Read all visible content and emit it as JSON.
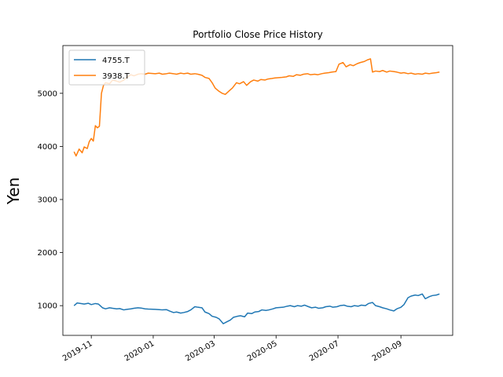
{
  "chart_data": {
    "type": "line",
    "title": "Portfolio Close Price History",
    "xlabel": "",
    "ylabel": "Yen",
    "legend_position": "top-left",
    "grid": false,
    "x_axis": {
      "type": "date",
      "range": [
        "2019-10-04",
        "2020-10-22"
      ],
      "ticks": [
        "2019-11",
        "2020-01",
        "2020-03",
        "2020-05",
        "2020-07",
        "2020-09"
      ],
      "tick_dates": [
        "2019-11-01",
        "2020-01-01",
        "2020-03-01",
        "2020-05-01",
        "2020-07-01",
        "2020-09-01"
      ]
    },
    "y_axis": {
      "range": [
        440,
        5900
      ],
      "ticks": [
        1000,
        2000,
        3000,
        4000,
        5000
      ]
    },
    "series": [
      {
        "name": "4755.T",
        "color": "#1f77b4",
        "points": [
          [
            "2019-10-15",
            1000
          ],
          [
            "2019-10-18",
            1050
          ],
          [
            "2019-10-22",
            1040
          ],
          [
            "2019-10-25",
            1030
          ],
          [
            "2019-10-29",
            1045
          ],
          [
            "2019-11-01",
            1020
          ],
          [
            "2019-11-05",
            1040
          ],
          [
            "2019-11-08",
            1030
          ],
          [
            "2019-11-12",
            960
          ],
          [
            "2019-11-15",
            940
          ],
          [
            "2019-11-19",
            960
          ],
          [
            "2019-11-22",
            950
          ],
          [
            "2019-11-26",
            940
          ],
          [
            "2019-11-29",
            945
          ],
          [
            "2019-12-03",
            920
          ],
          [
            "2019-12-06",
            930
          ],
          [
            "2019-12-10",
            940
          ],
          [
            "2019-12-13",
            950
          ],
          [
            "2019-12-17",
            960
          ],
          [
            "2019-12-20",
            955
          ],
          [
            "2019-12-24",
            940
          ],
          [
            "2019-12-27",
            935
          ],
          [
            "2020-01-03",
            930
          ],
          [
            "2020-01-07",
            925
          ],
          [
            "2020-01-10",
            920
          ],
          [
            "2020-01-14",
            925
          ],
          [
            "2020-01-17",
            900
          ],
          [
            "2020-01-21",
            870
          ],
          [
            "2020-01-24",
            880
          ],
          [
            "2020-01-28",
            860
          ],
          [
            "2020-01-31",
            870
          ],
          [
            "2020-02-04",
            890
          ],
          [
            "2020-02-07",
            920
          ],
          [
            "2020-02-11",
            980
          ],
          [
            "2020-02-14",
            970
          ],
          [
            "2020-02-18",
            960
          ],
          [
            "2020-02-21",
            880
          ],
          [
            "2020-02-25",
            850
          ],
          [
            "2020-02-28",
            800
          ],
          [
            "2020-03-03",
            780
          ],
          [
            "2020-03-06",
            750
          ],
          [
            "2020-03-10",
            660
          ],
          [
            "2020-03-13",
            690
          ],
          [
            "2020-03-17",
            730
          ],
          [
            "2020-03-20",
            780
          ],
          [
            "2020-03-24",
            800
          ],
          [
            "2020-03-27",
            810
          ],
          [
            "2020-03-31",
            790
          ],
          [
            "2020-04-03",
            860
          ],
          [
            "2020-04-07",
            850
          ],
          [
            "2020-04-10",
            880
          ],
          [
            "2020-04-14",
            890
          ],
          [
            "2020-04-17",
            920
          ],
          [
            "2020-04-21",
            910
          ],
          [
            "2020-04-24",
            920
          ],
          [
            "2020-04-28",
            940
          ],
          [
            "2020-05-01",
            960
          ],
          [
            "2020-05-08",
            970
          ],
          [
            "2020-05-12",
            990
          ],
          [
            "2020-05-15",
            1000
          ],
          [
            "2020-05-19",
            980
          ],
          [
            "2020-05-22",
            1000
          ],
          [
            "2020-05-26",
            990
          ],
          [
            "2020-05-29",
            1010
          ],
          [
            "2020-06-02",
            980
          ],
          [
            "2020-06-05",
            960
          ],
          [
            "2020-06-09",
            970
          ],
          [
            "2020-06-12",
            950
          ],
          [
            "2020-06-16",
            960
          ],
          [
            "2020-06-19",
            980
          ],
          [
            "2020-06-23",
            990
          ],
          [
            "2020-06-26",
            970
          ],
          [
            "2020-06-30",
            980
          ],
          [
            "2020-07-03",
            1000
          ],
          [
            "2020-07-07",
            1010
          ],
          [
            "2020-07-10",
            990
          ],
          [
            "2020-07-14",
            980
          ],
          [
            "2020-07-17",
            1000
          ],
          [
            "2020-07-21",
            990
          ],
          [
            "2020-07-24",
            1010
          ],
          [
            "2020-07-28",
            1000
          ],
          [
            "2020-07-31",
            1040
          ],
          [
            "2020-08-04",
            1060
          ],
          [
            "2020-08-07",
            1000
          ],
          [
            "2020-08-11",
            980
          ],
          [
            "2020-08-14",
            960
          ],
          [
            "2020-08-18",
            940
          ],
          [
            "2020-08-21",
            920
          ],
          [
            "2020-08-25",
            900
          ],
          [
            "2020-08-28",
            940
          ],
          [
            "2020-09-01",
            970
          ],
          [
            "2020-09-04",
            1020
          ],
          [
            "2020-09-08",
            1150
          ],
          [
            "2020-09-11",
            1180
          ],
          [
            "2020-09-15",
            1200
          ],
          [
            "2020-09-18",
            1190
          ],
          [
            "2020-09-22",
            1220
          ],
          [
            "2020-09-25",
            1130
          ],
          [
            "2020-09-29",
            1170
          ],
          [
            "2020-10-02",
            1190
          ],
          [
            "2020-10-06",
            1200
          ],
          [
            "2020-10-09",
            1220
          ]
        ]
      },
      {
        "name": "3938.T",
        "color": "#ff7f0e",
        "points": [
          [
            "2019-10-15",
            3900
          ],
          [
            "2019-10-17",
            3820
          ],
          [
            "2019-10-20",
            3950
          ],
          [
            "2019-10-23",
            3880
          ],
          [
            "2019-10-25",
            3990
          ],
          [
            "2019-10-28",
            3960
          ],
          [
            "2019-10-30",
            4090
          ],
          [
            "2019-11-01",
            4150
          ],
          [
            "2019-11-03",
            4100
          ],
          [
            "2019-11-05",
            4390
          ],
          [
            "2019-11-07",
            4350
          ],
          [
            "2019-11-09",
            4380
          ],
          [
            "2019-11-11",
            5000
          ],
          [
            "2019-11-13",
            5150
          ],
          [
            "2019-11-15",
            5200
          ],
          [
            "2019-11-19",
            5180
          ],
          [
            "2019-11-22",
            5250
          ],
          [
            "2019-11-26",
            5230
          ],
          [
            "2019-11-29",
            5210
          ],
          [
            "2019-12-03",
            5250
          ],
          [
            "2019-12-06",
            5300
          ],
          [
            "2019-12-10",
            5350
          ],
          [
            "2019-12-13",
            5330
          ],
          [
            "2019-12-17",
            5360
          ],
          [
            "2019-12-20",
            5370
          ],
          [
            "2019-12-24",
            5360
          ],
          [
            "2019-12-27",
            5380
          ],
          [
            "2020-01-03",
            5370
          ],
          [
            "2020-01-07",
            5380
          ],
          [
            "2020-01-10",
            5360
          ],
          [
            "2020-01-14",
            5370
          ],
          [
            "2020-01-17",
            5380
          ],
          [
            "2020-01-21",
            5370
          ],
          [
            "2020-01-24",
            5360
          ],
          [
            "2020-01-28",
            5380
          ],
          [
            "2020-01-31",
            5370
          ],
          [
            "2020-02-04",
            5380
          ],
          [
            "2020-02-07",
            5360
          ],
          [
            "2020-02-11",
            5370
          ],
          [
            "2020-02-14",
            5360
          ],
          [
            "2020-02-18",
            5340
          ],
          [
            "2020-02-21",
            5300
          ],
          [
            "2020-02-25",
            5280
          ],
          [
            "2020-02-28",
            5200
          ],
          [
            "2020-03-02",
            5100
          ],
          [
            "2020-03-05",
            5050
          ],
          [
            "2020-03-09",
            5000
          ],
          [
            "2020-03-12",
            4980
          ],
          [
            "2020-03-16",
            5050
          ],
          [
            "2020-03-19",
            5100
          ],
          [
            "2020-03-23",
            5200
          ],
          [
            "2020-03-26",
            5180
          ],
          [
            "2020-03-30",
            5220
          ],
          [
            "2020-04-02",
            5150
          ],
          [
            "2020-04-06",
            5220
          ],
          [
            "2020-04-09",
            5250
          ],
          [
            "2020-04-13",
            5230
          ],
          [
            "2020-04-16",
            5260
          ],
          [
            "2020-04-20",
            5250
          ],
          [
            "2020-04-23",
            5270
          ],
          [
            "2020-04-27",
            5280
          ],
          [
            "2020-04-30",
            5290
          ],
          [
            "2020-05-07",
            5300
          ],
          [
            "2020-05-11",
            5310
          ],
          [
            "2020-05-14",
            5330
          ],
          [
            "2020-05-18",
            5320
          ],
          [
            "2020-05-21",
            5350
          ],
          [
            "2020-05-25",
            5340
          ],
          [
            "2020-05-28",
            5360
          ],
          [
            "2020-06-01",
            5370
          ],
          [
            "2020-06-04",
            5350
          ],
          [
            "2020-06-08",
            5360
          ],
          [
            "2020-06-11",
            5350
          ],
          [
            "2020-06-15",
            5370
          ],
          [
            "2020-06-18",
            5380
          ],
          [
            "2020-06-22",
            5390
          ],
          [
            "2020-06-25",
            5400
          ],
          [
            "2020-06-29",
            5410
          ],
          [
            "2020-07-02",
            5550
          ],
          [
            "2020-07-06",
            5580
          ],
          [
            "2020-07-09",
            5500
          ],
          [
            "2020-07-13",
            5540
          ],
          [
            "2020-07-16",
            5520
          ],
          [
            "2020-07-20",
            5560
          ],
          [
            "2020-07-23",
            5580
          ],
          [
            "2020-07-27",
            5600
          ],
          [
            "2020-07-30",
            5630
          ],
          [
            "2020-08-02",
            5650
          ],
          [
            "2020-08-04",
            5400
          ],
          [
            "2020-08-07",
            5420
          ],
          [
            "2020-08-11",
            5410
          ],
          [
            "2020-08-14",
            5430
          ],
          [
            "2020-08-18",
            5400
          ],
          [
            "2020-08-21",
            5420
          ],
          [
            "2020-08-25",
            5410
          ],
          [
            "2020-08-28",
            5400
          ],
          [
            "2020-09-01",
            5380
          ],
          [
            "2020-09-04",
            5390
          ],
          [
            "2020-09-08",
            5370
          ],
          [
            "2020-09-11",
            5380
          ],
          [
            "2020-09-15",
            5360
          ],
          [
            "2020-09-18",
            5370
          ],
          [
            "2020-09-22",
            5360
          ],
          [
            "2020-09-25",
            5380
          ],
          [
            "2020-09-29",
            5370
          ],
          [
            "2020-10-02",
            5380
          ],
          [
            "2020-10-06",
            5390
          ],
          [
            "2020-10-09",
            5400
          ]
        ]
      }
    ]
  }
}
